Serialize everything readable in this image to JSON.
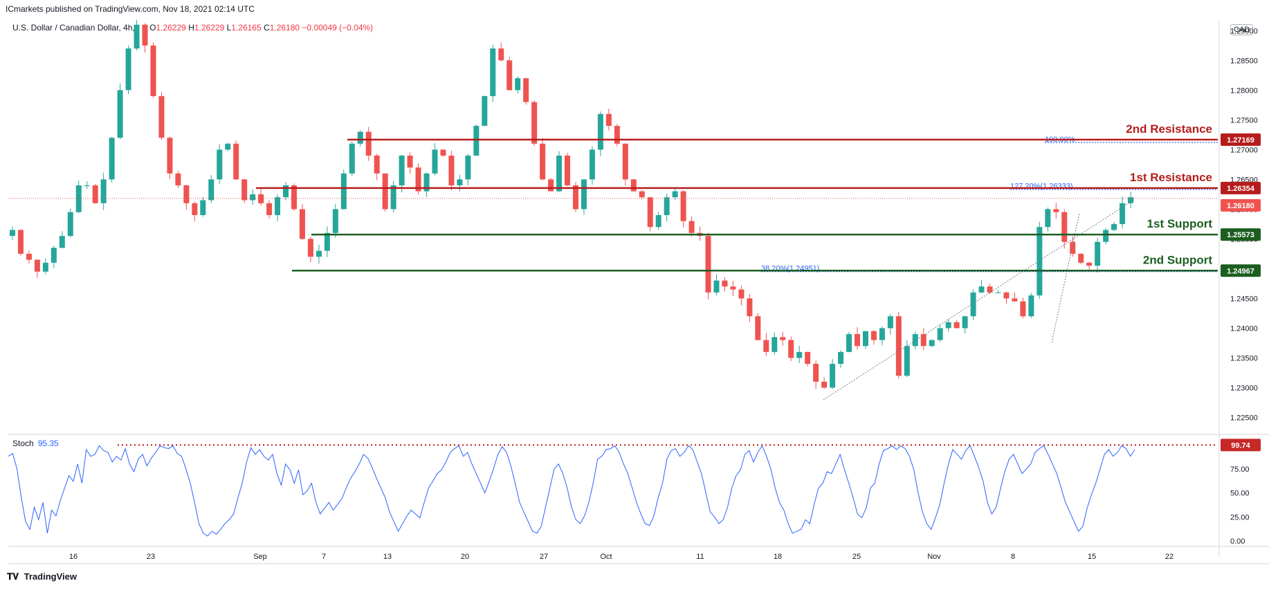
{
  "header": {
    "published": "ICmarkets published on TradingView.com, Nov 18, 2021 02:14 UTC"
  },
  "symbol": {
    "name": "U.S. Dollar / Canadian Dollar, 4h,",
    "open_label": "O",
    "open": "1.26229",
    "high_label": "H",
    "high": "1.26229",
    "low_label": "L",
    "low": "1.26165",
    "close_label": "C",
    "close": "1.26180",
    "change": "−0.00049 (−0.04%)"
  },
  "currency": "CAD",
  "brand": {
    "logo_icon": "tradingview-logo-icon",
    "name": "TradingView"
  },
  "colors": {
    "up": "#26a69a",
    "down": "#ef5350",
    "resistance": "#b71c1c",
    "support": "#1b5e20",
    "fib": "#2962ff",
    "stoch": "#2962ff",
    "stoch_marker": "#c62828"
  },
  "levels": [
    {
      "label": "2nd Resistance",
      "price": "1.27169",
      "kind": "resistance"
    },
    {
      "label": "1st Resistance",
      "price": "1.26354",
      "kind": "resistance"
    },
    {
      "label": "1st Support",
      "price": "1.25573",
      "kind": "support"
    },
    {
      "label": "2nd Support",
      "price": "1.24967",
      "kind": "support"
    }
  ],
  "last_price": "1.26180",
  "fib_labels": {
    "f100": "100.00%",
    "f127": "127.20%(1.26333)",
    "f38": "38.20%(1.24951)"
  },
  "stoch": {
    "label": "Stoch",
    "value": "95.35",
    "marker": "99.74"
  },
  "chart_data": {
    "type": "candlestick",
    "title": "U.S. Dollar / Canadian Dollar, 4h",
    "ylim": [
      1.2225,
      1.2905
    ],
    "price_ticks": [
      "1.29000",
      "1.28500",
      "1.28000",
      "1.27500",
      "1.27000",
      "1.26500",
      "1.26000",
      "1.25500",
      "1.25000",
      "1.24500",
      "1.24000",
      "1.23500",
      "1.23000",
      "1.22500"
    ],
    "x_ticks": [
      "16",
      "23",
      "Sep",
      "7",
      "13",
      "20",
      "27",
      "Oct",
      "11",
      "18",
      "25",
      "Nov",
      "8",
      "15",
      "22"
    ],
    "price_path": [
      [
        1.2555,
        1.2565,
        1.2525,
        1.2515,
        1.2495,
        1.251,
        1.2535,
        1.2555,
        1.2595,
        1.264,
        1.264,
        1.261,
        1.265,
        1.272,
        1.28,
        1.287,
        1.291,
        1.2875,
        1.279,
        1.272,
        1.266,
        1.264,
        1.261,
        1.259,
        1.2615,
        1.265,
        1.27,
        1.271,
        1.265,
        1.2615,
        1.2625,
        1.261,
        1.259,
        1.262,
        1.264,
        1.26,
        1.255,
        1.252,
        1.253,
        1.256,
        1.26,
        1.266,
        1.271,
        1.273,
        1.269,
        1.266,
        1.26,
        1.264,
        1.269,
        1.267,
        1.263,
        1.266,
        1.27,
        1.269,
        1.264,
        1.265,
        1.269,
        1.274,
        1.279,
        1.287,
        1.285,
        1.28,
        1.282,
        1.278,
        1.271,
        1.265,
        1.263,
        1.269,
        1.264,
        1.26,
        1.265,
        1.27,
        1.276,
        1.274,
        1.271,
        1.265,
        1.263,
        1.262,
        1.257,
        1.259,
        1.262,
        1.263,
        1.258,
        1.256,
        1.2555,
        1.246,
        1.248,
        1.247,
        1.2465,
        1.245,
        1.242,
        1.238,
        1.236,
        1.2385,
        1.238,
        1.235,
        1.236,
        1.234,
        1.231,
        1.23,
        1.234,
        1.236,
        1.239,
        1.237,
        1.2395,
        1.238,
        1.24,
        1.242,
        1.232,
        1.237,
        1.239,
        1.237,
        1.238,
        1.24,
        1.241,
        1.24,
        1.242,
        1.246,
        1.247,
        1.246,
        1.246,
        1.245,
        1.2445,
        1.242,
        1.2455,
        1.257,
        1.26,
        1.2595,
        1.2545,
        1.2525,
        1.251,
        1.2505,
        1.2545,
        1.2565,
        1.2575,
        1.261,
        1.262
      ]
    ],
    "stoch_series": [
      88,
      91,
      75,
      45,
      20,
      12,
      35,
      22,
      40,
      8,
      32,
      26,
      42,
      55,
      68,
      62,
      80,
      60,
      95,
      88,
      90,
      99,
      94,
      92,
      82,
      88,
      84,
      96,
      80,
      72,
      85,
      90,
      78,
      86,
      92,
      99,
      97,
      96,
      99,
      91,
      88,
      75,
      60,
      40,
      18,
      8,
      5,
      10,
      7,
      12,
      18,
      22,
      28,
      45,
      60,
      82,
      97,
      90,
      95,
      88,
      84,
      90,
      70,
      58,
      80,
      74,
      60,
      74,
      48,
      52,
      60,
      40,
      28,
      34,
      40,
      32,
      38,
      44,
      55,
      65,
      72,
      80,
      90,
      86,
      76,
      65,
      55,
      45,
      30,
      20,
      10,
      18,
      26,
      32,
      28,
      24,
      40,
      55,
      62,
      70,
      74,
      82,
      92,
      96,
      99,
      88,
      92,
      80,
      70,
      60,
      50,
      62,
      75,
      90,
      98,
      92,
      78,
      60,
      40,
      30,
      20,
      10,
      8,
      15,
      35,
      55,
      75,
      80,
      70,
      55,
      35,
      22,
      18,
      26,
      40,
      60,
      85,
      88,
      95,
      96,
      99,
      92,
      80,
      70,
      55,
      40,
      28,
      18,
      16,
      26,
      45,
      60,
      85,
      94,
      96,
      88,
      92,
      99,
      95,
      82,
      70,
      50,
      30,
      25,
      18,
      22,
      35,
      55,
      68,
      74,
      90,
      94,
      82,
      92,
      99,
      88,
      75,
      55,
      40,
      32,
      18,
      8,
      10,
      12,
      22,
      18,
      38,
      55,
      60,
      72,
      70,
      80,
      90,
      74,
      60,
      45,
      28,
      24,
      34,
      55,
      60,
      80,
      94,
      96,
      99,
      95,
      99,
      96,
      88,
      74,
      50,
      30,
      18,
      12,
      24,
      38,
      60,
      80,
      95,
      90,
      85,
      94,
      99,
      88,
      76,
      62,
      40,
      28,
      35,
      54,
      72,
      85,
      90,
      80,
      70,
      75,
      80,
      92,
      96,
      99,
      90,
      80,
      70,
      55,
      40,
      30,
      20,
      10,
      15,
      34,
      48,
      60,
      75,
      90,
      95,
      88,
      92,
      99,
      96,
      88,
      95
    ]
  }
}
